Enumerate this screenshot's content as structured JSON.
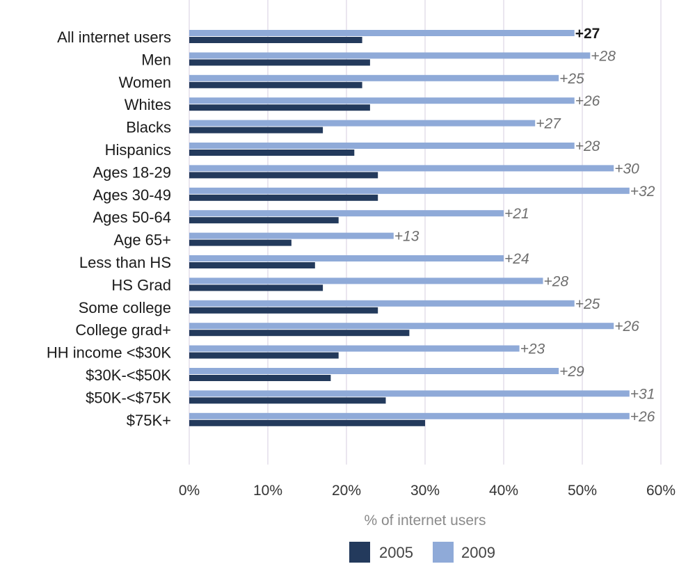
{
  "chart_data": {
    "type": "bar",
    "orientation": "horizontal",
    "categories": [
      "All internet users",
      "Men",
      "Women",
      "Whites",
      "Blacks",
      "Hispanics",
      "Ages 18-29",
      "Ages 30-49",
      "Ages 50-64",
      "Age 65+",
      "Less than HS",
      "HS Grad",
      "Some college",
      "College grad+",
      "HH income <$30K",
      "$30K-<$50K",
      "$50K-<$75K",
      "$75K+"
    ],
    "series": [
      {
        "name": "2005",
        "color": "#233a5c",
        "values": [
          22,
          23,
          22,
          23,
          17,
          21,
          24,
          24,
          19,
          13,
          16,
          17,
          24,
          28,
          19,
          18,
          25,
          30
        ]
      },
      {
        "name": "2009",
        "color": "#8faad8",
        "values": [
          49,
          51,
          47,
          49,
          44,
          49,
          54,
          56,
          40,
          26,
          40,
          45,
          49,
          54,
          42,
          47,
          56,
          56
        ]
      }
    ],
    "data_labels": [
      "+27",
      "+28",
      "+25",
      "+26",
      "+27",
      "+28",
      "+30",
      "+32",
      "+21",
      "+13",
      "+24",
      "+28",
      "+25",
      "+26",
      "+23",
      "+29",
      "+31",
      "+26"
    ],
    "xlabel": "% of internet users",
    "xlim": [
      0,
      60
    ],
    "x_ticks": [
      "0%",
      "10%",
      "20%",
      "30%",
      "40%",
      "50%",
      "60%"
    ],
    "grid": true,
    "legend_position": "bottom"
  }
}
